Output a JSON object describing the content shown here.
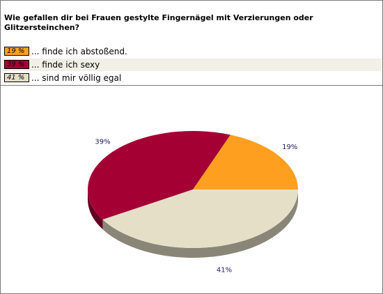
{
  "question": "Wie gefallen dir bei Frauen gestylte Fingernägel mit Verzierungen oder Glitzersteinchen?",
  "legend": [
    {
      "percent_label": "19 %",
      "label": "... finde ich abstoßend.",
      "color": "#ff9f1f",
      "row_bg": "#ffffff"
    },
    {
      "percent_label": "39 %",
      "label": "... finde ich sexy",
      "color": "#a50034",
      "row_bg": "#f0f0e6"
    },
    {
      "percent_label": "41 %",
      "label": "... sind mir völlig egal",
      "color": "#e5dfc8",
      "row_bg": "#ffffff"
    }
  ],
  "chart_data": {
    "type": "pie",
    "title": "Wie gefallen dir bei Frauen gestylte Fingernägel mit Verzierungen oder Glitzersteinchen?",
    "categories": [
      "... finde ich abstoßend.",
      "... finde ich sexy",
      "... sind mir völlig egal"
    ],
    "values": [
      19,
      39,
      41
    ],
    "data_labels": [
      "19%",
      "39%",
      "41%"
    ],
    "colors": [
      "#ff9f1f",
      "#a50034",
      "#e5dfc8"
    ],
    "style": "3d"
  }
}
